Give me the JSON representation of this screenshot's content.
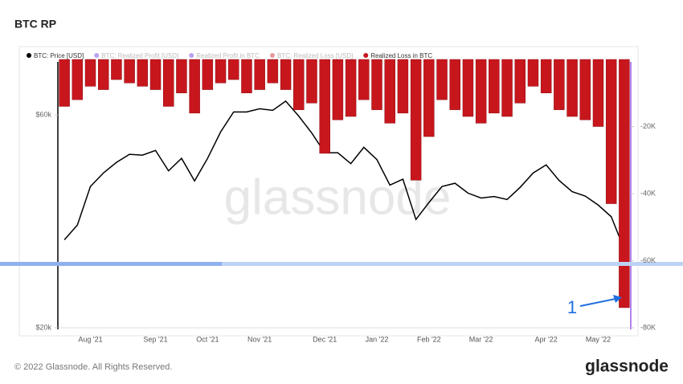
{
  "chart_data": {
    "type": "line",
    "title": "BTC RP",
    "watermark": "glassnode",
    "footer": "© 2022 Glassnode. All Rights Reserved.",
    "brand": "glassnode",
    "annotations": [
      {
        "text": "1"
      }
    ],
    "categories": [
      null,
      null,
      "Aug '21",
      null,
      null,
      null,
      null,
      "Sep '21",
      null,
      null,
      null,
      "Oct '21",
      null,
      null,
      null,
      "Nov '21",
      null,
      null,
      null,
      null,
      "Dec '21",
      null,
      null,
      null,
      "Jan '22",
      null,
      null,
      null,
      "Feb '22",
      null,
      null,
      null,
      "Mar '22",
      null,
      null,
      null,
      null,
      "Apr '22",
      null,
      null,
      null,
      "May '22",
      null,
      null
    ],
    "log_scale": true,
    "ylim": [
      20000,
      80000
    ],
    "yticks": [
      {
        "value": 20000,
        "label": "$20k"
      },
      {
        "value": 60000,
        "label": "$60k"
      }
    ],
    "y2lim": [
      -80000,
      0
    ],
    "y2ticks": [
      {
        "value": -80000,
        "label": "-80K"
      },
      {
        "value": -60000,
        "label": "-60K"
      },
      {
        "value": -40000,
        "label": "-40K"
      },
      {
        "value": -20000,
        "label": "-20K"
      }
    ],
    "series": [
      {
        "name": "BTC: Price [USD]",
        "type": "line",
        "color": "#000000",
        "visible": true,
        "values": [
          31500,
          34000,
          41500,
          44500,
          47000,
          49000,
          48800,
          50000,
          45000,
          48000,
          42700,
          48000,
          55000,
          61000,
          61000,
          62000,
          61500,
          64500,
          59700,
          54700,
          49400,
          49400,
          46700,
          50800,
          47700,
          41800,
          43100,
          35000,
          38200,
          41500,
          42200,
          40100,
          39100,
          39400,
          38800,
          41300,
          44500,
          46400,
          42800,
          40400,
          39500,
          37700,
          35500,
          30000
        ]
      },
      {
        "name": "BTC: Realized Profit [USD]",
        "color": "#b9a2ee",
        "visible": false
      },
      {
        "name": "Realized Profit in BTC",
        "color": "#b9a2ee",
        "visible": false
      },
      {
        "name": "BTC: Realized Loss [USD]",
        "color": "#e79a9a",
        "visible": false
      },
      {
        "name": "Realized Loss in BTC",
        "type": "bar",
        "axis": "y2",
        "color": "#c8161d",
        "visible": true,
        "values": [
          -14000,
          -12000,
          -8000,
          -9000,
          -6000,
          -7000,
          -8000,
          -9000,
          -14000,
          -10000,
          -16000,
          -9000,
          -7000,
          -6000,
          -10000,
          -9000,
          -7000,
          -9000,
          -15000,
          -13000,
          -28000,
          -18000,
          -17000,
          -12000,
          -15000,
          -19000,
          -16000,
          -36000,
          -23000,
          -12000,
          -15000,
          -17000,
          -19000,
          -16000,
          -17000,
          -13000,
          -8000,
          -10000,
          -15000,
          -17000,
          -18000,
          -20000,
          -43000,
          -74000
        ]
      }
    ]
  }
}
